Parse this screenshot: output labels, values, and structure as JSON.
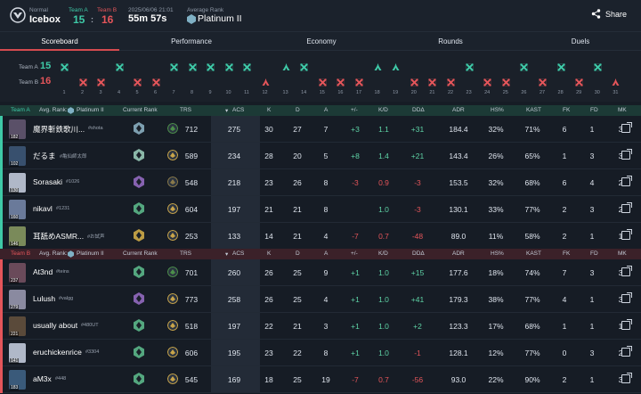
{
  "header": {
    "mode": "Normal",
    "map": "Icebox",
    "team_a_label": "Team A",
    "team_b_label": "Team B",
    "score_a": "15",
    "score_sep": ":",
    "score_b": "16",
    "date": "2025/06/06 21:01",
    "duration": "55m 57s",
    "avg_rank_label": "Average Rank",
    "avg_rank": "Platinum II",
    "share_label": "Share"
  },
  "tabs": [
    "Scoreboard",
    "Performance",
    "Economy",
    "Rounds",
    "Duels"
  ],
  "rounds": {
    "team_a": {
      "label": "Team A",
      "score": "15"
    },
    "team_b": {
      "label": "Team B",
      "score": "16"
    },
    "winners": [
      "A",
      "B",
      "B",
      "A",
      "B",
      "B",
      "A",
      "A",
      "A",
      "A",
      "A",
      "B",
      "A",
      "A",
      "B",
      "B",
      "B",
      "A",
      "A",
      "B",
      "B",
      "B",
      "A",
      "B",
      "B",
      "A",
      "B",
      "A",
      "B",
      "A",
      "B"
    ],
    "icons": [
      "elim",
      "elim",
      "elim",
      "elim",
      "elim",
      "elim",
      "elim",
      "elim",
      "elim",
      "elim",
      "elim",
      "defuse",
      "defuse",
      "elim",
      "elim",
      "elim",
      "elim",
      "defuse",
      "defuse",
      "elim",
      "elim",
      "elim",
      "elim",
      "elim",
      "elim",
      "elim",
      "elim",
      "elim",
      "elim",
      "elim",
      "defuse"
    ]
  },
  "columns": {
    "rank": "Current Rank",
    "trs": "TRS",
    "acs": "ACS",
    "k": "K",
    "d": "D",
    "a": "A",
    "pm": "+/-",
    "kd": "K/D",
    "dda": "DDΔ",
    "adr": "ADR",
    "hs": "HS%",
    "kast": "KAST",
    "fk": "FK",
    "fd": "FD",
    "mk": "MK"
  },
  "team_a": {
    "label": "Team A",
    "avg_rank_label": "Avg. Rank:",
    "avg_rank": "Platinum II",
    "color": "#3ec9a7",
    "players": [
      {
        "name": "魔界斬鉄歌川...",
        "tag": "#shota",
        "level": "182",
        "trs": "712",
        "acs": "275",
        "k": "30",
        "d": "27",
        "a": "7",
        "pm": "+3",
        "kd": "1.1",
        "dda": "+31",
        "adr": "184.4",
        "hs": "32%",
        "kast": "71%",
        "fk": "6",
        "fd": "1",
        "mk": "3",
        "rank_color": "#8fb6c9",
        "agent_color": "#4c8f4a",
        "avatar": "#5a5068"
      },
      {
        "name": "だるま",
        "tag": "#亀仙師太郎",
        "level": "102",
        "trs": "589",
        "acs": "234",
        "k": "28",
        "d": "20",
        "a": "5",
        "pm": "+8",
        "kd": "1.4",
        "dda": "+21",
        "adr": "143.4",
        "hs": "26%",
        "kast": "65%",
        "fk": "1",
        "fd": "3",
        "mk": "3",
        "rank_color": "#9fd2c0",
        "agent_color": "#c9a54a",
        "avatar": "#38506e"
      },
      {
        "name": "Sorasaki",
        "tag": "#1026",
        "level": "130",
        "trs": "548",
        "acs": "218",
        "k": "23",
        "d": "26",
        "a": "8",
        "pm": "-3",
        "kd": "0.9",
        "dda": "-3",
        "adr": "153.5",
        "hs": "32%",
        "kast": "68%",
        "fk": "6",
        "fd": "4",
        "mk": "2",
        "rank_color": "#9a6fc9",
        "agent_color": "#8a7a4a",
        "avatar": "#b0b8c8"
      },
      {
        "name": "nikavl",
        "tag": "#1231",
        "level": "160",
        "trs": "604",
        "acs": "197",
        "k": "21",
        "d": "21",
        "a": "8",
        "pm": "",
        "kd": "1.0",
        "dda": "-3",
        "adr": "130.1",
        "hs": "33%",
        "kast": "77%",
        "fk": "2",
        "fd": "3",
        "mk": "2",
        "rank_color": "#5fbf8f",
        "agent_color": "#c9a54a",
        "avatar": "#6a7a9a"
      },
      {
        "name": "耳舐めASMR...",
        "tag": "#お試声",
        "level": "146",
        "trs": "253",
        "acs": "133",
        "k": "14",
        "d": "21",
        "a": "4",
        "pm": "-7",
        "kd": "0.7",
        "dda": "-48",
        "adr": "89.0",
        "hs": "11%",
        "kast": "58%",
        "fk": "2",
        "fd": "1",
        "mk": "1",
        "rank_color": "#d9b34a",
        "agent_color": "#c9a54a",
        "avatar": "#7a8a5a"
      }
    ]
  },
  "team_b": {
    "label": "Team B",
    "avg_rank_label": "Avg. Rank:",
    "avg_rank": "Platinum II",
    "color": "#e4555a",
    "players": [
      {
        "name": "At3nd",
        "tag": "#teins",
        "level": "237",
        "trs": "701",
        "acs": "260",
        "k": "26",
        "d": "25",
        "a": "9",
        "pm": "+1",
        "kd": "1.0",
        "dda": "+15",
        "adr": "177.6",
        "hs": "18%",
        "kast": "74%",
        "fk": "7",
        "fd": "3",
        "mk": "3",
        "rank_color": "#5fbf8f",
        "agent_color": "#4c8f4a",
        "avatar": "#6a4a5a"
      },
      {
        "name": "Lulush",
        "tag": "#valgg",
        "level": "279",
        "trs": "773",
        "acs": "258",
        "k": "26",
        "d": "25",
        "a": "4",
        "pm": "+1",
        "kd": "1.0",
        "dda": "+41",
        "adr": "179.3",
        "hs": "38%",
        "kast": "77%",
        "fk": "4",
        "fd": "1",
        "mk": "3",
        "rank_color": "#9a6fc9",
        "agent_color": "#c9a54a",
        "avatar": "#8a8aa0"
      },
      {
        "name": "usually about",
        "tag": "#480UT",
        "level": "221",
        "trs": "518",
        "acs": "197",
        "k": "22",
        "d": "21",
        "a": "3",
        "pm": "+1",
        "kd": "1.0",
        "dda": "+2",
        "adr": "123.3",
        "hs": "17%",
        "kast": "68%",
        "fk": "1",
        "fd": "1",
        "mk": "1",
        "rank_color": "#5fbf8f",
        "agent_color": "#c9a54a",
        "avatar": "#5a4a3a"
      },
      {
        "name": "eruchickenrice",
        "tag": "#3304",
        "level": "141",
        "trs": "606",
        "acs": "195",
        "k": "23",
        "d": "22",
        "a": "8",
        "pm": "+1",
        "kd": "1.0",
        "dda": "-1",
        "adr": "128.1",
        "hs": "12%",
        "kast": "77%",
        "fk": "0",
        "fd": "3",
        "mk": "2",
        "rank_color": "#5fbf8f",
        "agent_color": "#c9a54a",
        "avatar": "#b0b8c8"
      },
      {
        "name": "aM3x",
        "tag": "#448",
        "level": "183",
        "trs": "545",
        "acs": "169",
        "k": "18",
        "d": "25",
        "a": "19",
        "pm": "-7",
        "kd": "0.7",
        "dda": "-56",
        "adr": "93.0",
        "hs": "22%",
        "kast": "90%",
        "fk": "2",
        "fd": "1",
        "mk": "3",
        "rank_color": "#5fbf8f",
        "agent_color": "#c9a54a",
        "avatar": "#3a5a7a"
      }
    ]
  }
}
